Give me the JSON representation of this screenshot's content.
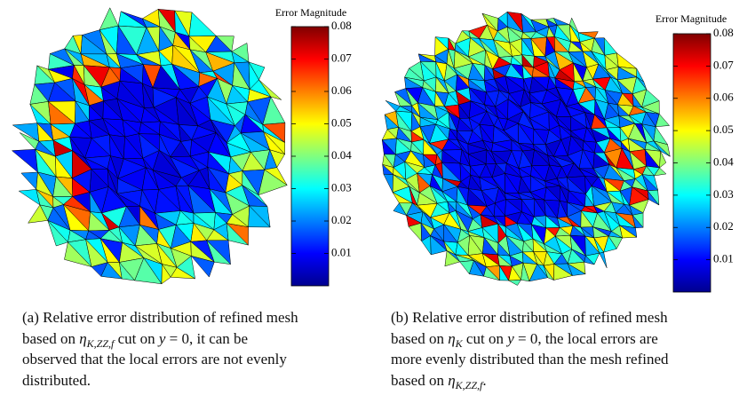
{
  "panels": [
    {
      "colorbar": {
        "title": "Error Magnitude",
        "clim": [
          0,
          0.08
        ],
        "ticks": [
          0.01,
          0.02,
          0.03,
          0.04,
          0.05,
          0.06,
          0.07,
          0.08
        ]
      },
      "caption": [
        [
          "(a) Relative error distribution of refined mesh"
        ],
        [
          "based on ",
          "η",
          "K,ZZ,f",
          " cut on ",
          "y",
          " = 0, it can be"
        ],
        [
          "observed that the local errors are not evenly"
        ],
        [
          "distributed."
        ]
      ]
    },
    {
      "colorbar": {
        "title": "Error Magnitude",
        "clim": [
          0,
          0.08
        ],
        "ticks": [
          0.01,
          0.02,
          0.03,
          0.04,
          0.05,
          0.06,
          0.07,
          0.08
        ]
      },
      "caption": [
        [
          "(b) Relative error distribution of refined mesh"
        ],
        [
          "based on ",
          "η",
          "K",
          " cut on ",
          "y",
          " = 0, the local errors are"
        ],
        [
          "more evenly distributed than the mesh refined"
        ],
        [
          "based on ",
          "η",
          "K,ZZ,f",
          "."
        ]
      ]
    }
  ]
}
